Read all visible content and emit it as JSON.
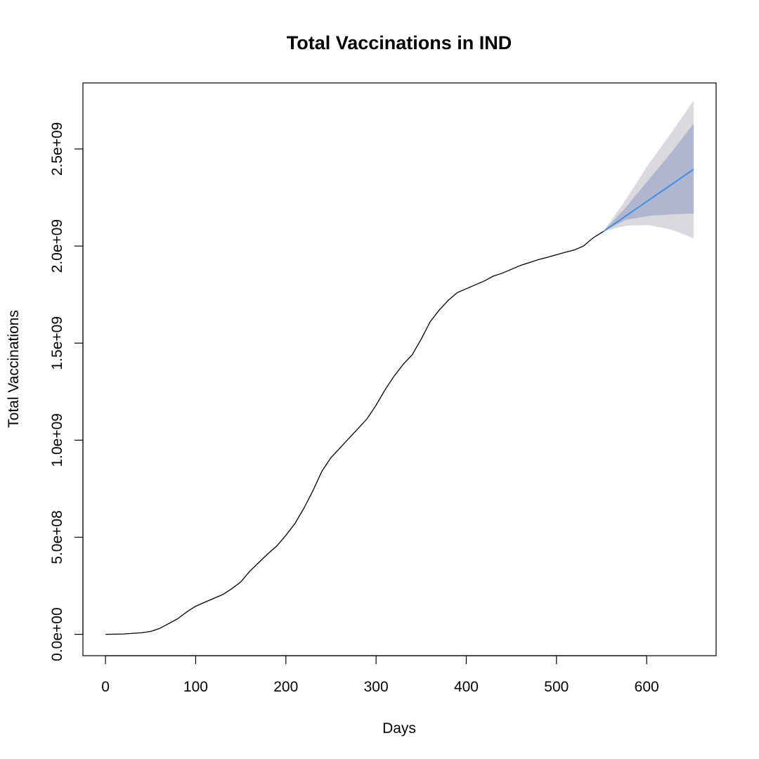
{
  "chart_data": {
    "type": "line",
    "title": "Total Vaccinations in IND",
    "xlabel": "Days",
    "ylabel": "Total Vaccinations",
    "xlim": [
      -25,
      677
    ],
    "ylim": [
      -110000000.0,
      2840000000.0
    ],
    "x_ticks": [
      {
        "value": 0,
        "label": "0"
      },
      {
        "value": 100,
        "label": "100"
      },
      {
        "value": 200,
        "label": "200"
      },
      {
        "value": 300,
        "label": "300"
      },
      {
        "value": 400,
        "label": "400"
      },
      {
        "value": 500,
        "label": "500"
      },
      {
        "value": 600,
        "label": "600"
      }
    ],
    "y_ticks": [
      {
        "value": 0,
        "label": "0.0e+00"
      },
      {
        "value": 500000000,
        "label": "5.0e+08"
      },
      {
        "value": 1000000000,
        "label": "1.0e+09"
      },
      {
        "value": 1500000000,
        "label": "1.5e+09"
      },
      {
        "value": 2000000000,
        "label": "2.0e+09"
      },
      {
        "value": 2500000000,
        "label": "2.5e+09"
      }
    ],
    "grid": false,
    "series": [
      {
        "color": "#000000",
        "x": [
          0,
          20,
          40,
          50,
          60,
          70,
          80,
          90,
          100,
          110,
          120,
          130,
          140,
          150,
          160,
          170,
          180,
          190,
          200,
          210,
          220,
          230,
          240,
          250,
          260,
          270,
          280,
          290,
          300,
          310,
          320,
          330,
          340,
          350,
          360,
          370,
          380,
          390,
          400,
          410,
          420,
          430,
          440,
          450,
          460,
          470,
          480,
          490,
          500,
          510,
          520,
          530,
          540,
          552
        ],
        "y": [
          0,
          2000000,
          8000000,
          15000000,
          30000000,
          55000000,
          80000000,
          115000000,
          145000000,
          165000000,
          185000000,
          205000000,
          235000000,
          270000000,
          325000000,
          370000000,
          415000000,
          455000000,
          510000000,
          570000000,
          650000000,
          740000000,
          840000000,
          910000000,
          960000000,
          1010000000,
          1060000000,
          1110000000,
          1180000000,
          1260000000,
          1330000000,
          1390000000,
          1440000000,
          1520000000,
          1610000000,
          1670000000,
          1720000000,
          1760000000,
          1780000000,
          1800000000,
          1820000000,
          1845000000,
          1860000000,
          1880000000,
          1900000000,
          1915000000,
          1930000000,
          1942000000,
          1955000000,
          1968000000,
          1980000000,
          2000000000,
          2040000000,
          2075000000
        ]
      }
    ],
    "forecast": {
      "line_color": "#3f8fe6",
      "inner_band_color": "#b0b5d0",
      "outer_band_color": "#d9d9de",
      "x": [
        552,
        577,
        602,
        627,
        652
      ],
      "mean": [
        2075000000,
        2155000000,
        2235000000,
        2315000000,
        2395000000
      ],
      "lower80": [
        2075000000,
        2135000000,
        2155000000,
        2163000000,
        2168000000
      ],
      "upper80": [
        2075000000,
        2200000000,
        2340000000,
        2480000000,
        2630000000
      ],
      "lower95": [
        2075000000,
        2105000000,
        2108000000,
        2085000000,
        2040000000
      ],
      "upper95": [
        2075000000,
        2240000000,
        2420000000,
        2580000000,
        2750000000
      ]
    }
  }
}
